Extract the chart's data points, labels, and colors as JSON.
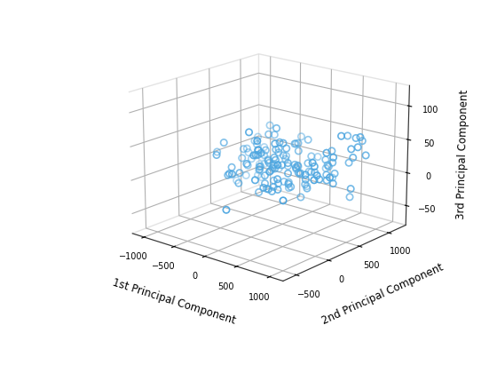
{
  "xlabel": "1st Principal Component",
  "ylabel": "2nd Principal Component",
  "zlabel": "3rd Principal Component",
  "marker_color": "#4da6e0",
  "marker_size": 28,
  "marker_linewidth": 1.2,
  "xlim": [
    -1200,
    1200
  ],
  "ylim": [
    -700,
    1300
  ],
  "zlim": [
    -80,
    130
  ],
  "xticks": [
    -1000,
    -500,
    0,
    500,
    1000
  ],
  "yticks": [
    -500,
    0,
    500,
    1000
  ],
  "zticks": [
    -50,
    0,
    50,
    100
  ],
  "elev": 18,
  "azim": -50,
  "seed": 7,
  "background_color": "#ffffff",
  "grid_color": "#c8c8c8",
  "pane_color": [
    0.93,
    0.93,
    0.93,
    0.0
  ]
}
